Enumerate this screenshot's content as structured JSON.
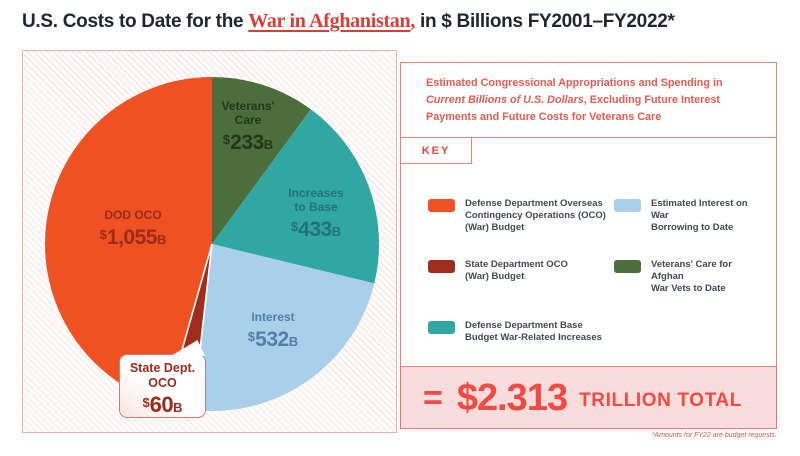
{
  "title": {
    "prefix": "U.S. Costs to Date for the ",
    "highlight": "War in Afghanistan",
    "comma": ",",
    "suffix": " in $ Billions FY2001–FY2022*"
  },
  "subtitle": {
    "part1": "Estimated Congressional Appropriations and Spending in ",
    "emphasis": "Current Billions of U.S. Dollars",
    "part2": ", Excluding Future Interest Payments and Future Costs for Veterans Care"
  },
  "key": {
    "label": "KEY"
  },
  "legend": {
    "columns": [
      [
        {
          "swatch_color": "#F05123",
          "label": "Defense Department Overseas\nContingency Operations (OCO)\n(War) Budget"
        },
        {
          "swatch_color": "#9E2D1B",
          "label": "State Department OCO\n(War) Budget"
        },
        {
          "swatch_color": "#2FA7A3",
          "label": "Defense Department Base\nBudget War-Related Increases"
        }
      ],
      [
        {
          "swatch_color": "#A9CFE9",
          "label": "Estimated Interest on War\nBorrowing to Date"
        },
        {
          "swatch_color": "#4C6E3C",
          "label": "Veterans' Care for Afghan\nWar Vets to Date"
        }
      ]
    ]
  },
  "total": {
    "equals": "=",
    "amount": "$2.313",
    "unit": "TRILLION TOTAL"
  },
  "footnote": "*Amounts for FY22 are budget requests.",
  "chart_data": {
    "type": "pie",
    "title": "U.S. Costs to Date for the War in Afghanistan, FY2001–FY2022",
    "unit": "current billions of U.S. dollars",
    "total_value": 2313,
    "total_label": "$2.313 trillion",
    "start_angle_deg": 0,
    "direction": "clockwise",
    "slices": [
      {
        "id": "veterans-care",
        "label": "Veterans' Care",
        "value": 233,
        "color": "#4C6E3C"
      },
      {
        "id": "increases-to-base",
        "label": "Increases to Base",
        "value": 433,
        "color": "#2FA7A3"
      },
      {
        "id": "interest",
        "label": "Interest",
        "value": 532,
        "color": "#A9CFE9"
      },
      {
        "id": "state-dept-oco",
        "label": "State Dept. OCO",
        "value": 60,
        "color": "#9E2D1B"
      },
      {
        "id": "dod-oco",
        "label": "DOD OCO",
        "value": 1055,
        "color": "#F05123"
      }
    ],
    "labels": {
      "dod": {
        "name": "DOD OCO",
        "currency": "$",
        "number": "1,055",
        "suffix": "B"
      },
      "veterans": {
        "name": "Veterans'\nCare",
        "currency": "$",
        "number": "233",
        "suffix": "B"
      },
      "increases": {
        "name": "Increases\nto Base",
        "currency": "$",
        "number": "433",
        "suffix": "B"
      },
      "interest": {
        "name": "Interest",
        "currency": "$",
        "number": "532",
        "suffix": "B"
      },
      "state": {
        "name": "State Dept.\nOCO",
        "currency": "$",
        "number": "60",
        "suffix": "B"
      }
    }
  }
}
